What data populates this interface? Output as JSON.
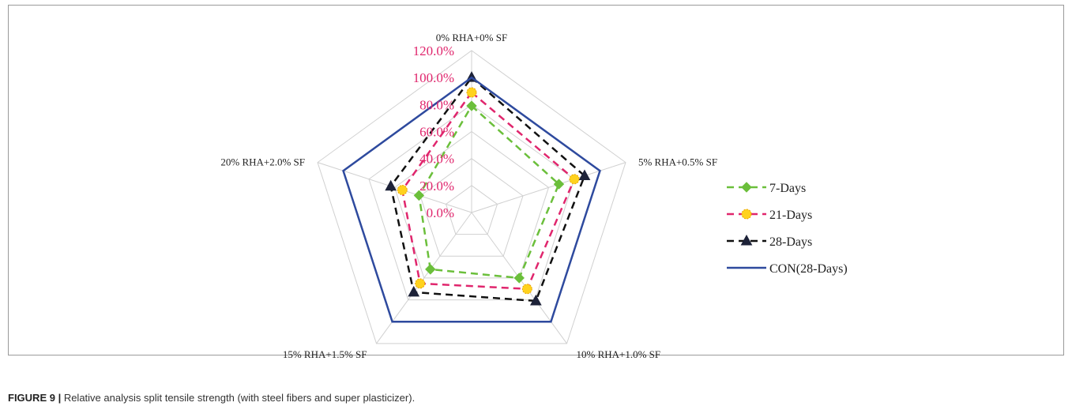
{
  "caption": {
    "label": "FIGURE 9 |",
    "text": " Relative analysis split tensile strength (with steel fibers and super plasticizer)."
  },
  "chart_data": {
    "type": "radar",
    "title": "",
    "categories": [
      "0% RHA+0% SF",
      "5% RHA+0.5% SF",
      "10% RHA+1.0% SF",
      "15% RHA+1.5% SF",
      "20% RHA+2.0% SF"
    ],
    "r_range": [
      0,
      120
    ],
    "ticks": [
      0,
      20,
      40,
      60,
      80,
      100,
      120
    ],
    "tick_labels": [
      "0.0%",
      "20.0%",
      "40.0%",
      "60.0%",
      "80.0%",
      "100.0%",
      "120.0%"
    ],
    "grid": true,
    "legend_position": "right",
    "series": [
      {
        "name": "7-Days",
        "values": [
          79,
          68,
          60,
          52,
          41
        ],
        "color": "#6bbf3b",
        "dash": "dashed",
        "marker": "diamond"
      },
      {
        "name": "21-Days",
        "values": [
          89,
          80,
          70,
          65,
          54
        ],
        "color": "#e0266d",
        "dash": "dashed",
        "marker": "circle"
      },
      {
        "name": "28-Days",
        "values": [
          100,
          88,
          81,
          73,
          63
        ],
        "color": "#111111",
        "dash": "dashed",
        "marker": "triangle"
      },
      {
        "name": "CON(28-Days)",
        "values": [
          100,
          100,
          100,
          100,
          100
        ],
        "color": "#2e4a9e",
        "dash": "solid",
        "marker": "none"
      }
    ]
  }
}
